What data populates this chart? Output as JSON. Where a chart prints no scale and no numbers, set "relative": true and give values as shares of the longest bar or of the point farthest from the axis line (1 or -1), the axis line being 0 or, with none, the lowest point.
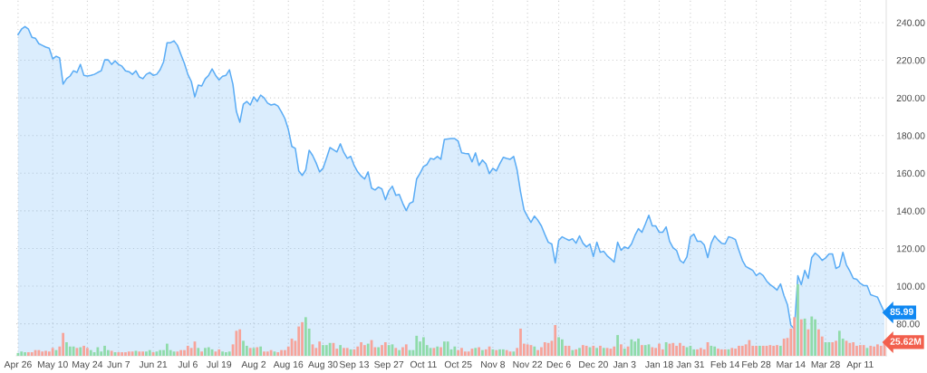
{
  "chart_data": [
    {
      "type": "area",
      "grid": true,
      "categories": [
        "Apr 26",
        null,
        null,
        null,
        null,
        null,
        null,
        null,
        null,
        null,
        "May 10",
        null,
        null,
        null,
        null,
        null,
        null,
        null,
        null,
        null,
        "May 24",
        null,
        null,
        null,
        null,
        null,
        null,
        null,
        null,
        "Jun 7",
        null,
        null,
        null,
        null,
        null,
        null,
        null,
        null,
        null,
        "Jun 21",
        null,
        null,
        null,
        null,
        null,
        null,
        null,
        null,
        null,
        "Jul 6",
        null,
        null,
        null,
        null,
        null,
        null,
        null,
        null,
        "Jul 19",
        null,
        null,
        null,
        null,
        null,
        null,
        null,
        null,
        null,
        "Aug 2",
        null,
        null,
        null,
        null,
        null,
        null,
        null,
        null,
        null,
        "Aug 16",
        null,
        null,
        null,
        null,
        null,
        null,
        null,
        null,
        null,
        "Aug 30",
        null,
        null,
        null,
        null,
        null,
        null,
        null,
        null,
        "Sep 13",
        null,
        null,
        null,
        null,
        null,
        null,
        null,
        null,
        null,
        "Sep 27",
        null,
        null,
        null,
        null,
        null,
        null,
        null,
        null,
        null,
        "Oct 11",
        null,
        null,
        null,
        null,
        null,
        null,
        null,
        null,
        null,
        "Oct 25",
        null,
        null,
        null,
        null,
        null,
        null,
        null,
        null,
        null,
        "Nov 8",
        null,
        null,
        null,
        null,
        null,
        null,
        null,
        null,
        null,
        "Nov 22",
        null,
        null,
        null,
        null,
        null,
        null,
        null,
        null,
        "Dec 6",
        null,
        null,
        null,
        null,
        null,
        null,
        null,
        null,
        null,
        "Dec 20",
        null,
        null,
        null,
        null,
        null,
        null,
        null,
        null,
        "Jan 3",
        null,
        null,
        null,
        null,
        null,
        null,
        null,
        null,
        null,
        "Jan 18",
        null,
        null,
        null,
        null,
        null,
        null,
        null,
        null,
        "Jan 31",
        null,
        null,
        null,
        null,
        null,
        null,
        null,
        null,
        null,
        "Feb 14",
        null,
        null,
        null,
        null,
        null,
        null,
        null,
        null,
        "Feb 28",
        null,
        null,
        null,
        null,
        null,
        null,
        null,
        null,
        null,
        "Mar 14",
        null,
        null,
        null,
        null,
        null,
        null,
        null,
        null,
        null,
        "Mar 28",
        null,
        null,
        null,
        null,
        null,
        null,
        null,
        null,
        null,
        "Apr 11",
        null,
        null,
        null,
        null,
        null,
        null,
        null
      ],
      "ylim": [
        63,
        252
      ],
      "yticks": [
        {
          "value": 80,
          "label": "80.00"
        },
        {
          "value": 100,
          "label": "100.00"
        },
        {
          "value": 120,
          "label": "120.00"
        },
        {
          "value": 140,
          "label": "140.00"
        },
        {
          "value": 160,
          "label": "160.00"
        },
        {
          "value": 180,
          "label": "180.00"
        },
        {
          "value": 200,
          "label": "200.00"
        },
        {
          "value": 220,
          "label": "220.00"
        },
        {
          "value": 240,
          "label": "240.00"
        }
      ],
      "annotations": [
        "85.99"
      ],
      "series": [
        {
          "color": "#5aacf5",
          "values": [
            233.6,
            236.5,
            237.9,
            236.5,
            232.2,
            231.7,
            228.8,
            227.9,
            227,
            226.4,
            220.7,
            222.1,
            221.2,
            207.3,
            210.2,
            211.6,
            214.4,
            213.5,
            217.8,
            212,
            211.6,
            212,
            212.5,
            213.5,
            214.4,
            220.2,
            220.2,
            217.8,
            219.7,
            217.8,
            216.8,
            214.4,
            213.9,
            212.5,
            214.4,
            211.1,
            210.2,
            212.5,
            213.5,
            212,
            212.5,
            215,
            219.2,
            229.3,
            229.3,
            230.3,
            227.9,
            223,
            218.3,
            212.5,
            208.7,
            200.5,
            206.8,
            206.3,
            210.1,
            212,
            215.4,
            212,
            209.6,
            211.5,
            212,
            214.9,
            207.2,
            192.8,
            187.1,
            196.6,
            198.1,
            196.2,
            200.5,
            198.1,
            201.5,
            200,
            197.2,
            196.2,
            196.7,
            195.7,
            192.5,
            189,
            183.2,
            174.2,
            173.2,
            161.2,
            158.8,
            161.7,
            172.2,
            169.4,
            165.5,
            160.7,
            162.6,
            168,
            173.6,
            172.5,
            171.3,
            175.6,
            171,
            167.9,
            168.9,
            164,
            160.7,
            158.5,
            156.9,
            160.7,
            152.1,
            151.1,
            152.6,
            151.6,
            145.9,
            150.7,
            153.1,
            148.3,
            148.7,
            144,
            140.1,
            144,
            144.9,
            156.9,
            160,
            163.6,
            164.6,
            167.9,
            167.4,
            168.9,
            167.4,
            177.9,
            178.2,
            178.4,
            178.4,
            177,
            170.8,
            170.5,
            170.3,
            166,
            170.8,
            164.1,
            167,
            165,
            159.8,
            162.6,
            161.2,
            165,
            168.4,
            167.8,
            167.4,
            168.9,
            161.7,
            150,
            140.5,
            137,
            133.9,
            137.2,
            135,
            132,
            127.5,
            123.3,
            122.4,
            112.3,
            124.3,
            126.2,
            125.2,
            124.3,
            125.2,
            122.8,
            126.7,
            122.8,
            120.9,
            122.4,
            115.7,
            123.3,
            118,
            118.5,
            116.1,
            114.5,
            112.8,
            123.3,
            119,
            120.9,
            120,
            122.4,
            127,
            130.5,
            128.6,
            133,
            137.7,
            132,
            132,
            128.6,
            128.6,
            131.5,
            123.8,
            120.4,
            119,
            113.7,
            112.3,
            115.6,
            126.2,
            127.6,
            123.8,
            123.8,
            121.9,
            115.2,
            122.8,
            126.7,
            124.5,
            122.8,
            122.4,
            126.2,
            125.7,
            124.7,
            119,
            113.7,
            110.4,
            109.4,
            108.4,
            105.6,
            107,
            105.6,
            102.7,
            100.8,
            99.5,
            97.9,
            101.2,
            95,
            90.2,
            79.2,
            77.3,
            105.6,
            100.8,
            108.4,
            104.1,
            115.2,
            117.6,
            116,
            113.7,
            115,
            117.1,
            117.1,
            109.4,
            110.4,
            118,
            111.3,
            108,
            104.1,
            103.6,
            101.5,
            100.3,
            100.3,
            95.5,
            94.8,
            94.1,
            90,
            85.99
          ]
        }
      ]
    },
    {
      "type": "bar",
      "relative": true,
      "categories": [
        null,
        null,
        null,
        null,
        null,
        null,
        null,
        null,
        null,
        null,
        null,
        null,
        null,
        null,
        null,
        null,
        null,
        null,
        null,
        null,
        null,
        null,
        null,
        null,
        null,
        null,
        null,
        null,
        null,
        null,
        null,
        null,
        null,
        null,
        null,
        null,
        null,
        null,
        null,
        null,
        null,
        null,
        null,
        null,
        null,
        null,
        null,
        null,
        null,
        null,
        null,
        null,
        null,
        null,
        null,
        null,
        null,
        null,
        null,
        null,
        null,
        null,
        null,
        null,
        null,
        null,
        null,
        null,
        null,
        null,
        null,
        null,
        null,
        null,
        null,
        null,
        null,
        null,
        null,
        null,
        null,
        null,
        null,
        null,
        null,
        null,
        null,
        null,
        null,
        null,
        null,
        null,
        null,
        null,
        null,
        null,
        null,
        null,
        null,
        null,
        null,
        null,
        null,
        null,
        null,
        null,
        null,
        null,
        null,
        null,
        null,
        null,
        null,
        null,
        null,
        null,
        null,
        null,
        null,
        null,
        null,
        null,
        null,
        null,
        null,
        null,
        null,
        null,
        null,
        null,
        null,
        null,
        null,
        null,
        null,
        null,
        null,
        null,
        null,
        null,
        null,
        null,
        null,
        null,
        null,
        null,
        null,
        null,
        null,
        null,
        null,
        null,
        null,
        null,
        null,
        null,
        null,
        null,
        null,
        null,
        null,
        null,
        null,
        null,
        null,
        null,
        null,
        null,
        null,
        null,
        null,
        null,
        null,
        null,
        null,
        null,
        null,
        null,
        null,
        null,
        null,
        null,
        null,
        null,
        null,
        null,
        null,
        null,
        null,
        null,
        null,
        null,
        null,
        null,
        null,
        null,
        null,
        null,
        null,
        null,
        null,
        null,
        null,
        null,
        null,
        null,
        null,
        null,
        null,
        null,
        null,
        null,
        null,
        null,
        null,
        null,
        null,
        null,
        null,
        null,
        null,
        null,
        null,
        null,
        null,
        null,
        null,
        null,
        null,
        null,
        null,
        null,
        null,
        null,
        null,
        null,
        null,
        null,
        null,
        null,
        null,
        null,
        null,
        null,
        null,
        null,
        null,
        null,
        null,
        null,
        null
      ],
      "annotations": [
        "25.62M"
      ],
      "values": [
        0.04,
        0.06,
        0.05,
        0.05,
        0.05,
        0.08,
        0.08,
        0.06,
        0.07,
        0.06,
        0.11,
        0.08,
        0.13,
        0.32,
        0.19,
        0.13,
        0.13,
        0.11,
        0.12,
        0.14,
        0.11,
        0.08,
        0.05,
        0.12,
        0.06,
        0.14,
        0.08,
        0.07,
        0.05,
        0.05,
        0.05,
        0.05,
        0.06,
        0.06,
        0.07,
        0.06,
        0.06,
        0.06,
        0.08,
        0.05,
        0.06,
        0.08,
        0.08,
        0.17,
        0.08,
        0.06,
        0.06,
        0.08,
        0.08,
        0.14,
        0.11,
        0.2,
        0.11,
        0.06,
        0.11,
        0.12,
        0.09,
        0.06,
        0.09,
        0.06,
        0.05,
        0.06,
        0.16,
        0.35,
        0.37,
        0.21,
        0.14,
        0.11,
        0.11,
        0.12,
        0.13,
        0.06,
        0.06,
        0.08,
        0.06,
        0.05,
        0.08,
        0.08,
        0.13,
        0.24,
        0.21,
        0.41,
        0.47,
        0.54,
        0.38,
        0.16,
        0.11,
        0.2,
        0.15,
        0.15,
        0.18,
        0.18,
        0.1,
        0.15,
        0.11,
        0.11,
        0.09,
        0.09,
        0.13,
        0.19,
        0.15,
        0.17,
        0.22,
        0.12,
        0.12,
        0.15,
        0.19,
        0.15,
        0.16,
        0.11,
        0.08,
        0.12,
        0.16,
        0.08,
        0.08,
        0.28,
        0.2,
        0.26,
        0.15,
        0.11,
        0.11,
        0.13,
        0.12,
        0.2,
        0.2,
        0.09,
        0.13,
        0.08,
        0.11,
        0.06,
        0.06,
        0.1,
        0.11,
        0.12,
        0.08,
        0.09,
        0.13,
        0.09,
        0.08,
        0.09,
        0.09,
        0.08,
        0.06,
        0.06,
        0.11,
        0.38,
        0.17,
        0.16,
        0.15,
        0.13,
        0.08,
        0.12,
        0.19,
        0.18,
        0.21,
        0.43,
        0.26,
        0.23,
        0.14,
        0.14,
        0.08,
        0.09,
        0.11,
        0.15,
        0.14,
        0.12,
        0.14,
        0.11,
        0.14,
        0.11,
        0.11,
        0.1,
        0.13,
        0.29,
        0.16,
        0.1,
        0.13,
        0.23,
        0.2,
        0.24,
        0.15,
        0.15,
        0.16,
        0.12,
        0.11,
        0.17,
        0.09,
        0.19,
        0.17,
        0.18,
        0.14,
        0.18,
        0.14,
        0.12,
        0.14,
        0.09,
        0.09,
        0.11,
        0.09,
        0.19,
        0.14,
        0.13,
        0.1,
        0.09,
        0.09,
        0.09,
        0.11,
        0.1,
        0.14,
        0.14,
        0.16,
        0.22,
        0.14,
        0.14,
        0.14,
        0.14,
        0.14,
        0.15,
        0.14,
        0.15,
        0.14,
        0.24,
        0.25,
        0.38,
        0.54,
        1,
        0.51,
        0.52,
        0.37,
        0.55,
        0.51,
        0.37,
        0.27,
        0.19,
        0.19,
        0.19,
        0.21,
        0.35,
        0.24,
        0.21,
        0.18,
        0.19,
        0.14,
        0.15,
        0.15,
        0.11,
        0.14,
        0.13,
        0.16,
        0.14,
        0.19
      ],
      "colors": [
        "#8fdba9",
        "#8fdba9",
        "#8fdba9",
        "#f7a399",
        "#f7a399",
        "#f7a399",
        "#f7a399",
        "#f7a399",
        "#f7a399",
        "#f7a399",
        "#f7a399",
        "#8fdba9",
        "#f7a399",
        "#f7a399",
        "#8fdba9",
        "#8fdba9",
        "#8fdba9",
        "#f7a399",
        "#8fdba9",
        "#f7a399",
        "#f7a399",
        "#8fdba9",
        "#8fdba9",
        "#8fdba9",
        "#8fdba9",
        "#8fdba9",
        "#8fdba9",
        "#f7a399",
        "#8fdba9",
        "#f7a399",
        "#f7a399",
        "#f7a399",
        "#f7a399",
        "#f7a399",
        "#8fdba9",
        "#f7a399",
        "#f7a399",
        "#8fdba9",
        "#8fdba9",
        "#f7a399",
        "#8fdba9",
        "#8fdba9",
        "#8fdba9",
        "#8fdba9",
        "#8fdba9",
        "#8fdba9",
        "#f7a399",
        "#f7a399",
        "#f7a399",
        "#f7a399",
        "#f7a399",
        "#f7a399",
        "#8fdba9",
        "#f7a399",
        "#8fdba9",
        "#8fdba9",
        "#8fdba9",
        "#f7a399",
        "#f7a399",
        "#8fdba9",
        "#8fdba9",
        "#8fdba9",
        "#f7a399",
        "#f7a399",
        "#f7a399",
        "#8fdba9",
        "#8fdba9",
        "#f7a399",
        "#8fdba9",
        "#f7a399",
        "#8fdba9",
        "#f7a399",
        "#f7a399",
        "#f7a399",
        "#8fdba9",
        "#f7a399",
        "#f7a399",
        "#f7a399",
        "#f7a399",
        "#f7a399",
        "#f7a399",
        "#f7a399",
        "#f7a399",
        "#8fdba9",
        "#8fdba9",
        "#f7a399",
        "#f7a399",
        "#f7a399",
        "#8fdba9",
        "#8fdba9",
        "#8fdba9",
        "#f7a399",
        "#f7a399",
        "#8fdba9",
        "#f7a399",
        "#f7a399",
        "#8fdba9",
        "#f7a399",
        "#f7a399",
        "#f7a399",
        "#f7a399",
        "#8fdba9",
        "#f7a399",
        "#f7a399",
        "#8fdba9",
        "#f7a399",
        "#f7a399",
        "#8fdba9",
        "#8fdba9",
        "#f7a399",
        "#8fdba9",
        "#f7a399",
        "#f7a399",
        "#8fdba9",
        "#8fdba9",
        "#8fdba9",
        "#8fdba9",
        "#8fdba9",
        "#8fdba9",
        "#8fdba9",
        "#f7a399",
        "#8fdba9",
        "#f7a399",
        "#8fdba9",
        "#8fdba9",
        "#8fdba9",
        "#8fdba9",
        "#f7a399",
        "#f7a399",
        "#f7a399",
        "#f7a399",
        "#f7a399",
        "#8fdba9",
        "#f7a399",
        "#8fdba9",
        "#f7a399",
        "#f7a399",
        "#8fdba9",
        "#f7a399",
        "#8fdba9",
        "#8fdba9",
        "#f7a399",
        "#f7a399",
        "#8fdba9",
        "#f7a399",
        "#f7a399",
        "#f7a399",
        "#f7a399",
        "#f7a399",
        "#8fdba9",
        "#f7a399",
        "#f7a399",
        "#f7a399",
        "#f7a399",
        "#f7a399",
        "#f7a399",
        "#8fdba9",
        "#8fdba9",
        "#f7a399",
        "#f7a399",
        "#8fdba9",
        "#f7a399",
        "#8fdba9",
        "#f7a399",
        "#f7a399",
        "#8fdba9",
        "#f7a399",
        "#8fdba9",
        "#f7a399",
        "#8fdba9",
        "#f7a399",
        "#f7a399",
        "#f7a399",
        "#8fdba9",
        "#f7a399",
        "#8fdba9",
        "#f7a399",
        "#8fdba9",
        "#8fdba9",
        "#8fdba9",
        "#f7a399",
        "#8fdba9",
        "#8fdba9",
        "#f7a399",
        "#f7a399",
        "#f7a399",
        "#f7a399",
        "#8fdba9",
        "#f7a399",
        "#f7a399",
        "#f7a399",
        "#f7a399",
        "#f7a399",
        "#8fdba9",
        "#8fdba9",
        "#8fdba9",
        "#f7a399",
        "#f7a399",
        "#f7a399",
        "#f7a399",
        "#8fdba9",
        "#8fdba9",
        "#f7a399",
        "#f7a399",
        "#f7a399",
        "#8fdba9",
        "#f7a399",
        "#f7a399",
        "#f7a399",
        "#f7a399",
        "#f7a399",
        "#f7a399",
        "#f7a399",
        "#f7a399",
        "#8fdba9",
        "#f7a399",
        "#f7a399",
        "#f7a399",
        "#f7a399",
        "#f7a399",
        "#8fdba9",
        "#f7a399",
        "#f7a399",
        "#f7a399",
        "#f7a399",
        "#8fdba9",
        "#f7a399",
        "#8fdba9",
        "#f7a399",
        "#8fdba9",
        "#8fdba9",
        "#f7a399",
        "#f7a399",
        "#8fdba9",
        "#8fdba9",
        "#f7a399",
        "#f7a399",
        "#8fdba9",
        "#8fdba9",
        "#f7a399",
        "#f7a399",
        "#f7a399",
        "#f7a399",
        "#f7a399",
        "#f7a399",
        "#8fdba9",
        "#f7a399",
        "#f7a399",
        "#f7a399",
        "#f7a399",
        "#f7a399"
      ]
    }
  ]
}
